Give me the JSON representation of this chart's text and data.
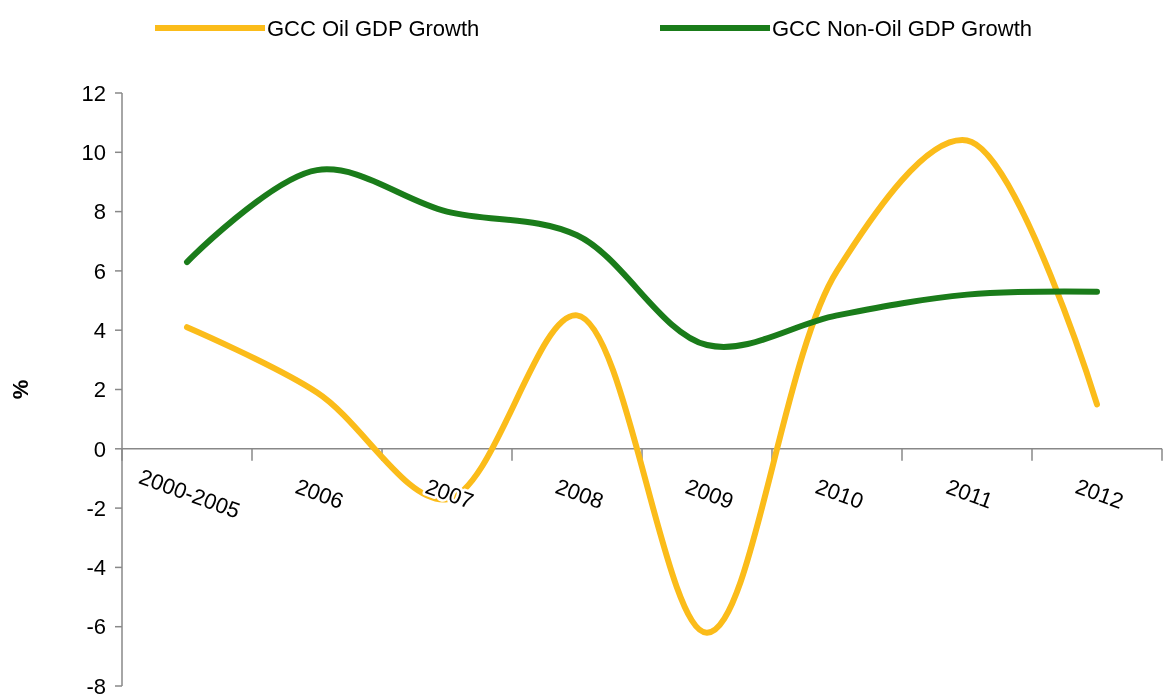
{
  "chart_data": {
    "type": "line",
    "ylabel": "%",
    "categories": [
      "2000-2005",
      "2006",
      "2007",
      "2008",
      "2009",
      "2010",
      "2011",
      "2012"
    ],
    "series": [
      {
        "name": "GCC Oil GDP Growth",
        "color": "#fbbc1a",
        "values": [
          4.1,
          1.9,
          -1.7,
          4.5,
          -6.2,
          6.0,
          10.4,
          1.5
        ]
      },
      {
        "name": "GCC Non-Oil GDP Growth",
        "color": "#1a7c1a",
        "values": [
          6.3,
          9.4,
          8.0,
          7.2,
          3.5,
          4.5,
          5.2,
          5.3
        ]
      }
    ],
    "ylim": [
      -8,
      12
    ],
    "yticks": [
      -8,
      -6,
      -4,
      -2,
      0,
      2,
      4,
      6,
      8,
      10,
      12
    ],
    "grid": false,
    "legend": "top",
    "marker": "none",
    "line_style": "solid"
  }
}
